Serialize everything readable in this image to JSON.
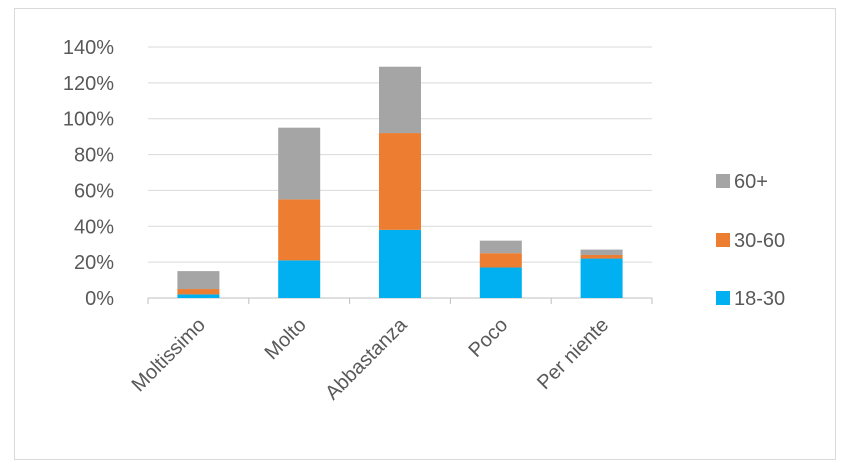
{
  "chart_data": {
    "type": "bar",
    "stacked": true,
    "categories": [
      "Moltissimo",
      "Molto",
      "Abbastanza",
      "Poco",
      "Per niente"
    ],
    "series": [
      {
        "name": "18-30",
        "color": "#00b0f0",
        "values": [
          2,
          21,
          38,
          17,
          22
        ]
      },
      {
        "name": "30-60",
        "color": "#ed7d31",
        "values": [
          3,
          34,
          54,
          8,
          2
        ]
      },
      {
        "name": "60+",
        "color": "#a5a5a5",
        "values": [
          10,
          40,
          37,
          7,
          3
        ]
      }
    ],
    "ylim": [
      0,
      140
    ],
    "y_ticks": [
      "0%",
      "20%",
      "40%",
      "60%",
      "80%",
      "100%",
      "120%",
      "140%"
    ],
    "y_tick_values": [
      0,
      20,
      40,
      60,
      80,
      100,
      120,
      140
    ],
    "grid": true,
    "legend_position": "right",
    "legend_order": [
      "60+",
      "30-60",
      "18-30"
    ]
  }
}
